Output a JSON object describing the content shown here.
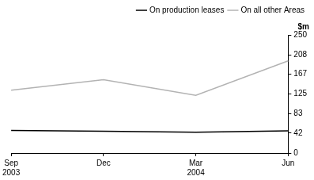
{
  "chart_data": {
    "type": "line",
    "categories": [
      "Sep 2003",
      "Dec",
      "Mar 2004",
      "Jun"
    ],
    "series": [
      {
        "name": "On production leases",
        "color": "#000000",
        "values": [
          48,
          46,
          44,
          47
        ]
      },
      {
        "name": "On all other Areas",
        "color": "#b3b3b3",
        "values": [
          133,
          155,
          122,
          195
        ]
      }
    ],
    "y_label": "$m",
    "ylim": [
      0,
      250
    ],
    "yticks": [
      0,
      42,
      83,
      125,
      167,
      208,
      250
    ],
    "grid": false,
    "legend": "upper right"
  }
}
